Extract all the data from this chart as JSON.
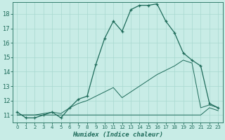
{
  "xlabel": "Humidex (Indice chaleur)",
  "background_color": "#c8ece6",
  "grid_color": "#a8d8d0",
  "line_color": "#1e6b5a",
  "xlim": [
    -0.5,
    23.5
  ],
  "ylim": [
    10.5,
    18.8
  ],
  "yticks": [
    11,
    12,
    13,
    14,
    15,
    16,
    17,
    18
  ],
  "xticks": [
    0,
    1,
    2,
    3,
    4,
    5,
    6,
    7,
    8,
    9,
    10,
    11,
    12,
    13,
    14,
    15,
    16,
    17,
    18,
    19,
    20,
    21,
    22,
    23
  ],
  "series1_x": [
    0,
    1,
    2,
    3,
    4,
    5,
    6,
    7,
    8,
    9,
    10,
    11,
    12,
    13,
    14,
    15,
    16,
    17,
    18,
    19,
    20,
    21,
    22,
    23
  ],
  "series1_y": [
    11.2,
    10.8,
    10.8,
    11.0,
    11.2,
    10.8,
    11.5,
    12.1,
    12.3,
    14.5,
    16.3,
    17.5,
    16.8,
    18.3,
    18.6,
    18.6,
    18.7,
    17.5,
    16.7,
    15.3,
    14.8,
    14.4,
    11.8,
    11.5
  ],
  "series2_x": [
    0,
    1,
    2,
    3,
    4,
    5,
    6,
    7,
    8,
    9,
    10,
    11,
    12,
    13,
    14,
    15,
    16,
    17,
    18,
    19,
    20,
    21,
    22,
    23
  ],
  "series2_y": [
    11.0,
    11.0,
    11.0,
    11.0,
    11.0,
    11.0,
    11.0,
    11.0,
    11.0,
    11.0,
    11.0,
    11.0,
    11.0,
    11.0,
    11.0,
    11.0,
    11.0,
    11.0,
    11.0,
    11.0,
    11.0,
    11.0,
    11.5,
    11.3
  ],
  "series3_x": [
    0,
    1,
    2,
    3,
    4,
    5,
    6,
    7,
    8,
    9,
    10,
    11,
    12,
    13,
    14,
    15,
    16,
    17,
    18,
    19,
    20,
    21,
    22,
    23
  ],
  "series3_y": [
    11.0,
    11.0,
    11.0,
    11.1,
    11.2,
    11.1,
    11.5,
    11.8,
    12.0,
    12.3,
    12.6,
    12.9,
    12.2,
    12.6,
    13.0,
    13.4,
    13.8,
    14.1,
    14.4,
    14.8,
    14.6,
    11.5,
    11.7,
    11.5
  ]
}
